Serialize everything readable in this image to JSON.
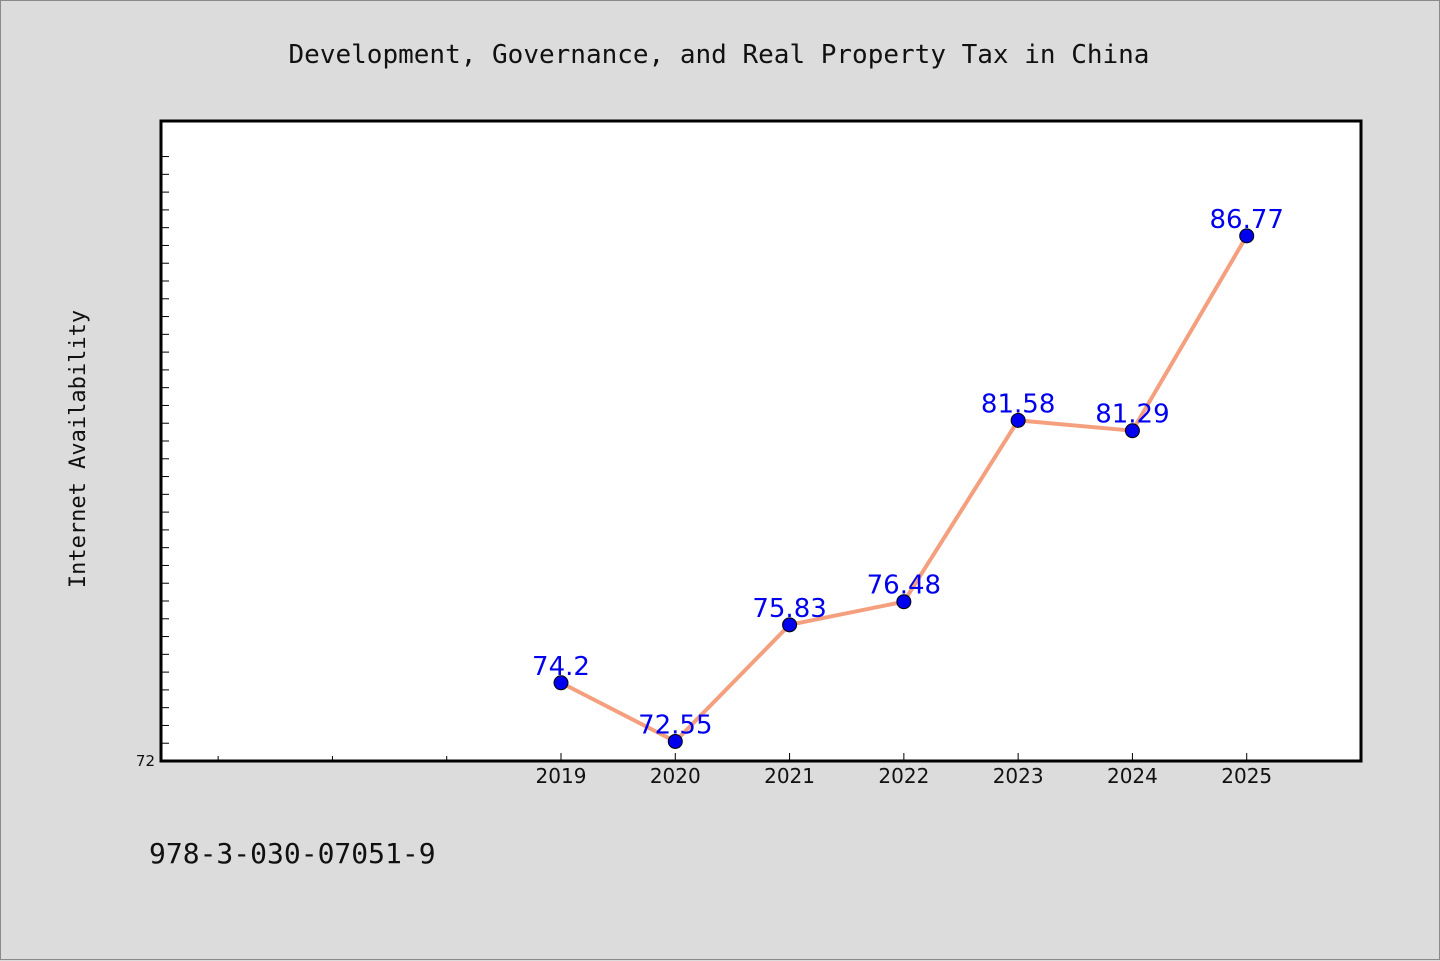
{
  "footer_text": "978-3-030-07051-9",
  "chart_data": {
    "type": "line",
    "title": "Development, Governance, and Real Property Tax in China",
    "xlabel": "",
    "ylabel": "Internet Availability",
    "x": [
      "2019",
      "2020",
      "2021",
      "2022",
      "2023",
      "2024",
      "2025"
    ],
    "series": [
      {
        "values": [
          74.2,
          72.55,
          75.83,
          76.48,
          81.58,
          81.29,
          86.77
        ],
        "data_labels": [
          "74.2",
          "72.55",
          "75.83",
          "76.48",
          "81.58",
          "81.29",
          "86.77"
        ],
        "line_color": "#f4a07e",
        "marker_color": "#0000ee"
      }
    ],
    "x_slots_before_first_category": 3,
    "ylim": [
      72,
      90
    ],
    "yticks_labeled": [
      "72"
    ],
    "grid": false,
    "legend": "none",
    "plot_background": "#ffffff",
    "page_background": "#dcdcdc",
    "label_color": "#0000ee"
  }
}
